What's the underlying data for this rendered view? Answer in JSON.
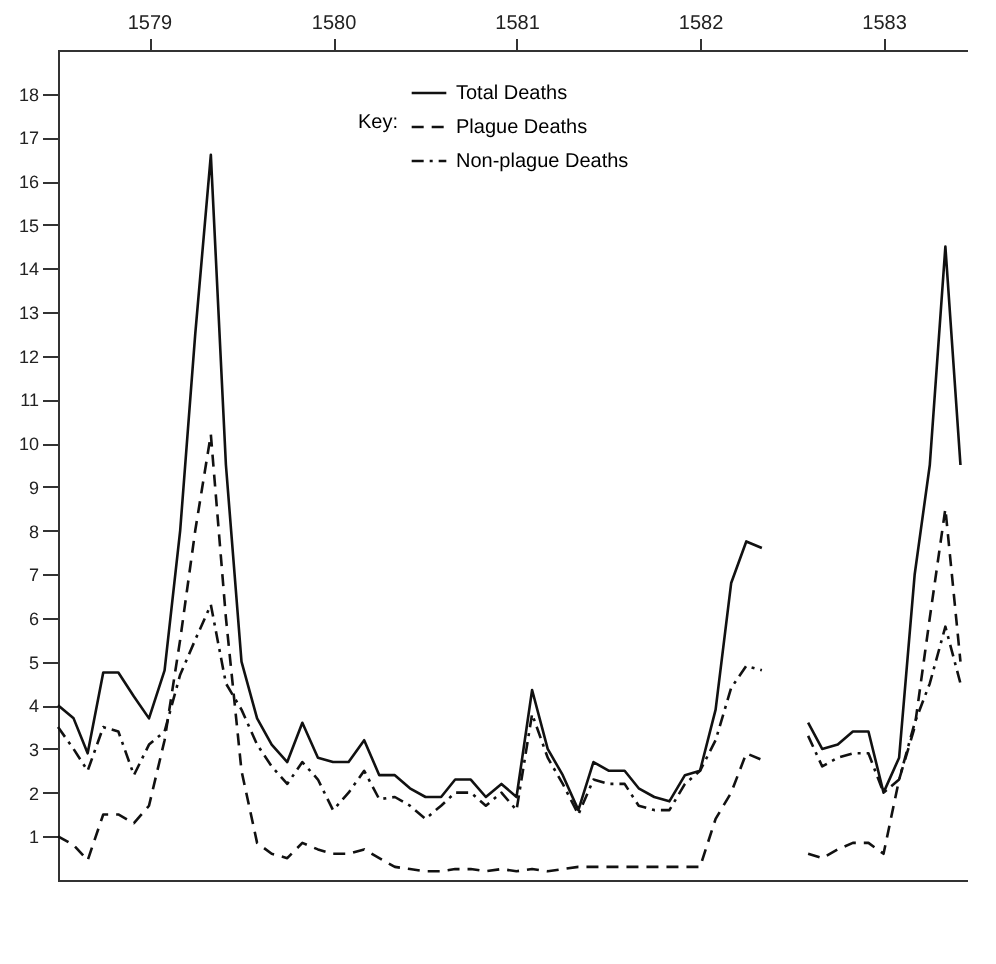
{
  "chart_data": {
    "type": "line",
    "legend_title": "Key:",
    "legend": "top",
    "grid": false,
    "marker": "none",
    "x": [
      "1579-01",
      "1579-02",
      "1579-03",
      "1579-04",
      "1579-05",
      "1579-06",
      "1579-07",
      "1579-08",
      "1579-09",
      "1579-10",
      "1579-11",
      "1579-12",
      "1580-01",
      "1580-02",
      "1580-03",
      "1580-04",
      "1580-05",
      "1580-06",
      "1580-07",
      "1580-08",
      "1580-09",
      "1580-10",
      "1580-11",
      "1580-12",
      "1581-01",
      "1581-02",
      "1581-03",
      "1581-04",
      "1581-05",
      "1581-06",
      "1581-07",
      "1581-08",
      "1581-09",
      "1581-10",
      "1581-11",
      "1581-12",
      "1582-01",
      "1582-02",
      "1582-03",
      "1582-04",
      "1582-05",
      "1582-06",
      "1582-07",
      "1582-08",
      "1582-09",
      "1582-10",
      "1582-11",
      "1582-12",
      "1583-01",
      "1583-02",
      "1583-03",
      "1583-04",
      "1583-05",
      "1583-06",
      "1583-07",
      "1583-08",
      "1583-09",
      "1583-10",
      "1583-11",
      "1583-12"
    ],
    "xlim": [
      "1579-01-01",
      "1583-12-16"
    ],
    "xticks": [
      {
        "value": "1579-07",
        "label": "1579"
      },
      {
        "value": "1580-07",
        "label": "1580"
      },
      {
        "value": "1581-07",
        "label": "1581"
      },
      {
        "value": "1582-07",
        "label": "1582"
      },
      {
        "value": "1583-07",
        "label": "1583"
      }
    ],
    "ylim": [
      0,
      19
    ],
    "yticks": [
      1,
      2,
      3,
      4,
      5,
      6,
      7,
      8,
      9,
      10,
      11,
      12,
      13,
      14,
      15,
      16,
      17,
      18
    ],
    "series": [
      {
        "name": "Total Deaths",
        "color": "#111111",
        "line_style": "solid",
        "values": [
          4.0,
          3.7,
          2.9,
          4.75,
          4.75,
          4.2,
          3.7,
          4.8,
          8,
          12.5,
          16.6,
          9.5,
          5,
          3.7,
          3.1,
          2.7,
          3.6,
          2.8,
          2.7,
          2.7,
          3.2,
          2.4,
          2.4,
          2.1,
          1.9,
          1.9,
          2.3,
          2.3,
          1.9,
          2.2,
          1.9,
          4.35,
          3.0,
          2.4,
          1.6,
          2.7,
          2.5,
          2.5,
          2.1,
          1.9,
          1.8,
          2.4,
          2.5,
          3.9,
          6.8,
          7.75,
          7.6,
          null,
          null,
          3.6,
          3.0,
          3.1,
          3.4,
          3.4,
          2.0,
          2.8,
          7.0,
          9.5,
          14.5,
          9.5
        ]
      },
      {
        "name": "Plague Deaths",
        "color": "#111111",
        "line_style": "dashed",
        "values": [
          1.0,
          0.8,
          0.45,
          1.5,
          1.5,
          1.3,
          1.7,
          3.2,
          5.5,
          8,
          10.2,
          6,
          2.5,
          0.85,
          0.6,
          0.5,
          0.85,
          0.7,
          0.6,
          0.6,
          0.7,
          0.5,
          0.3,
          0.25,
          0.2,
          0.2,
          0.25,
          0.25,
          0.2,
          0.25,
          0.2,
          0.25,
          0.2,
          0.25,
          0.3,
          0.3,
          0.3,
          0.3,
          0.3,
          0.3,
          0.3,
          0.3,
          0.3,
          1.4,
          2.0,
          2.9,
          2.75,
          null,
          null,
          0.6,
          0.5,
          0.7,
          0.85,
          0.85,
          0.6,
          2.3,
          3.5,
          6,
          8.5,
          5
        ]
      },
      {
        "name": "Non-plague Deaths",
        "color": "#111111",
        "line_style": "dotted",
        "values": [
          3.5,
          3.0,
          2.5,
          3.5,
          3.4,
          2.4,
          3.1,
          3.4,
          4.7,
          5.5,
          6.3,
          4.5,
          3.9,
          3.1,
          2.6,
          2.2,
          2.7,
          2.3,
          1.6,
          2.0,
          2.5,
          1.85,
          1.9,
          1.7,
          1.4,
          1.7,
          2.0,
          2.0,
          1.7,
          2.0,
          1.6,
          3.8,
          2.8,
          2.2,
          1.5,
          2.3,
          2.2,
          2.2,
          1.7,
          1.6,
          1.6,
          2.2,
          2.5,
          3.2,
          4.4,
          4.9,
          4.8,
          null,
          null,
          3.3,
          2.6,
          2.8,
          2.9,
          2.9,
          2.0,
          2.3,
          3.6,
          4.5,
          5.8,
          4.5
        ]
      }
    ]
  }
}
